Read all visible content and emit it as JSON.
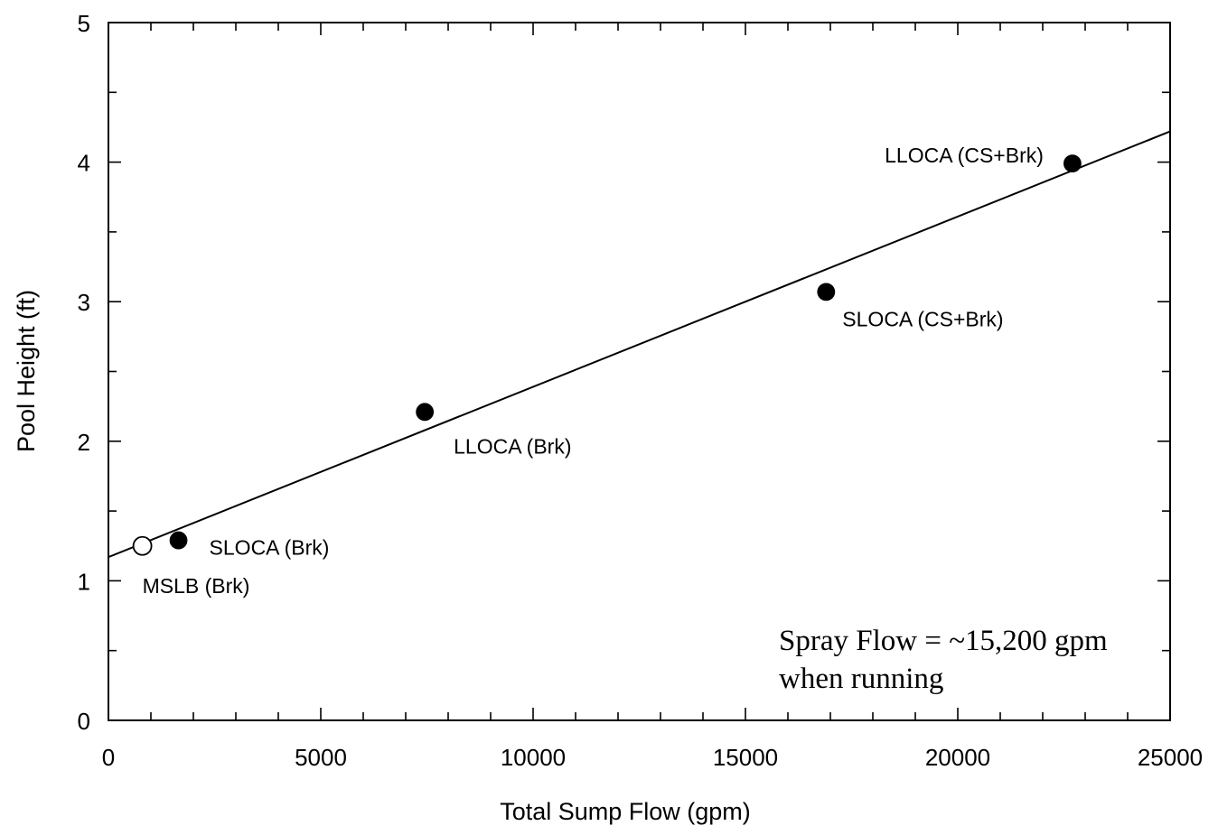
{
  "chart_data": {
    "type": "scatter",
    "title": "",
    "xlabel": "Total Sump Flow (gpm)",
    "ylabel": "Pool Height (ft)",
    "xlim": [
      0,
      25000
    ],
    "ylim": [
      0,
      5
    ],
    "x_ticks": [
      0,
      5000,
      10000,
      15000,
      20000,
      25000
    ],
    "y_ticks": [
      0,
      1,
      2,
      3,
      4,
      5
    ],
    "x_minor_step": 1000,
    "y_minor_step": 0.5,
    "grid": false,
    "points": [
      {
        "label": "MSLB (Brk)",
        "x": 800,
        "y": 1.25,
        "marker": "open-circle"
      },
      {
        "label": "SLOCA (Brk)",
        "x": 1650,
        "y": 1.29,
        "marker": "filled-circle"
      },
      {
        "label": "LLOCA (Brk)",
        "x": 7450,
        "y": 2.21,
        "marker": "filled-circle"
      },
      {
        "label": "SLOCA (CS+Brk)",
        "x": 16900,
        "y": 3.07,
        "marker": "filled-circle"
      },
      {
        "label": "LLOCA (CS+Brk)",
        "x": 22700,
        "y": 3.99,
        "marker": "filled-circle"
      }
    ],
    "fit_line": {
      "x": [
        0,
        25000
      ],
      "y": [
        1.17,
        4.22
      ]
    },
    "annotation": [
      "Spray Flow = ~15,200 gpm",
      "when running"
    ]
  }
}
